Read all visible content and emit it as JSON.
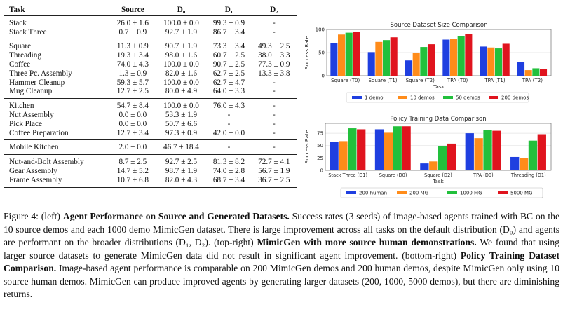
{
  "table": {
    "headers": [
      "Task",
      "Source",
      "D₀",
      "D₁",
      "D₂"
    ],
    "groups": [
      [
        [
          "Stack",
          "26.0 ± 1.6",
          "100.0 ± 0.0",
          "99.3 ± 0.9",
          "-"
        ],
        [
          "Stack Three",
          "0.7 ± 0.9",
          "92.7 ± 1.9",
          "86.7 ± 3.4",
          "-"
        ]
      ],
      [
        [
          "Square",
          "11.3 ± 0.9",
          "90.7 ± 1.9",
          "73.3 ± 3.4",
          "49.3 ± 2.5"
        ],
        [
          "Threading",
          "19.3 ± 3.4",
          "98.0 ± 1.6",
          "60.7 ± 2.5",
          "38.0 ± 3.3"
        ],
        [
          "Coffee",
          "74.0 ± 4.3",
          "100.0 ± 0.0",
          "90.7 ± 2.5",
          "77.3 ± 0.9"
        ],
        [
          "Three Pc. Assembly",
          "1.3 ± 0.9",
          "82.0 ± 1.6",
          "62.7 ± 2.5",
          "13.3 ± 3.8"
        ],
        [
          "Hammer Cleanup",
          "59.3 ± 5.7",
          "100.0 ± 0.0",
          "62.7 ± 4.7",
          "-"
        ],
        [
          "Mug Cleanup",
          "12.7 ± 2.5",
          "80.0 ± 4.9",
          "64.0 ± 3.3",
          "-"
        ]
      ],
      [
        [
          "Kitchen",
          "54.7 ± 8.4",
          "100.0 ± 0.0",
          "76.0 ± 4.3",
          "-"
        ],
        [
          "Nut Assembly",
          "0.0 ± 0.0",
          "53.3 ± 1.9",
          "-",
          "-"
        ],
        [
          "Pick Place",
          "0.0 ± 0.0",
          "50.7 ± 6.6",
          "-",
          "-"
        ],
        [
          "Coffee Preparation",
          "12.7 ± 3.4",
          "97.3 ± 0.9",
          "42.0 ± 0.0",
          "-"
        ]
      ],
      [
        [
          "Mobile Kitchen",
          "2.0 ± 0.0",
          "46.7 ± 18.4",
          "-",
          "-"
        ]
      ],
      [
        [
          "Nut-and-Bolt Assembly",
          "8.7 ± 2.5",
          "92.7 ± 2.5",
          "81.3 ± 8.2",
          "72.7 ± 4.1"
        ],
        [
          "Gear Assembly",
          "14.7 ± 5.2",
          "98.7 ± 1.9",
          "74.0 ± 2.8",
          "56.7 ± 1.9"
        ],
        [
          "Frame Assembly",
          "10.7 ± 6.8",
          "82.0 ± 4.3",
          "68.7 ± 3.4",
          "36.7 ± 2.5"
        ]
      ]
    ]
  },
  "chart_data": [
    {
      "type": "bar",
      "title": "Source Dataset Size Comparison",
      "xlabel": "Task",
      "ylabel": "Success Rate",
      "ylim": [
        0,
        100
      ],
      "yticks": [
        0,
        50,
        100
      ],
      "categories": [
        "Square (T0)",
        "Square (T1)",
        "Square (T2)",
        "TPA (T0)",
        "TPA (T1)",
        "TPA (T2)"
      ],
      "series": [
        {
          "name": "1 demo",
          "color": "#1f3fe0",
          "values": [
            71,
            51,
            33,
            78,
            63,
            29
          ]
        },
        {
          "name": "10 demos",
          "color": "#ff8c1a",
          "values": [
            89,
            73,
            49,
            80,
            61,
            12
          ]
        },
        {
          "name": "50 demos",
          "color": "#22c03c",
          "values": [
            93,
            77,
            62,
            85,
            59,
            16
          ]
        },
        {
          "name": "200 demos",
          "color": "#e0141e",
          "values": [
            95,
            83,
            68,
            90,
            69,
            14
          ]
        }
      ],
      "legend": "below"
    },
    {
      "type": "bar",
      "title": "Policy Training Data Comparison",
      "xlabel": "Task",
      "ylabel": "Success Rate",
      "ylim": [
        0,
        95
      ],
      "yticks": [
        0,
        25,
        50,
        75
      ],
      "categories": [
        "Stack Three (D1)",
        "Square (D0)",
        "Square (D2)",
        "TPA (D0)",
        "Threading (D1)"
      ],
      "series": [
        {
          "name": "200 human",
          "color": "#1f3fe0",
          "values": [
            58,
            83,
            14,
            75,
            27
          ]
        },
        {
          "name": "200 MG",
          "color": "#ff8c1a",
          "values": [
            59,
            76,
            18,
            65,
            25
          ]
        },
        {
          "name": "1000 MG",
          "color": "#22c03c",
          "values": [
            85,
            89,
            49,
            81,
            60
          ]
        },
        {
          "name": "5000 MG",
          "color": "#e0141e",
          "values": [
            83,
            89,
            54,
            80,
            73
          ]
        }
      ],
      "legend": "below"
    }
  ],
  "caption": {
    "lead": "Figure 4: (left) ",
    "b1": "Agent Performance on Source and Generated Datasets.",
    "t1": " Success rates (3 seeds) of image-based agents trained with BC on the 10 source demos and each 1000 demo MimicGen dataset. There is large improvement across all tasks on the default distribution (D₀) and agents are performant on the broader distributions (D₁, D₂). (top-right) ",
    "b2": "MimicGen with more source human demonstrations.",
    "t2": " We found that using larger source datasets to generate MimicGen data did not result in significant agent improvement. (bottom-right) ",
    "b3": "Policy Training Dataset Comparison.",
    "t3": " Image-based agent performance is comparable on 200 MimicGen demos and 200 human demos, despite MimicGen only using 10 source human demos. MimicGen can produce improved agents by generating larger datasets (200, 1000, 5000 demos), but there are diminishing returns."
  }
}
